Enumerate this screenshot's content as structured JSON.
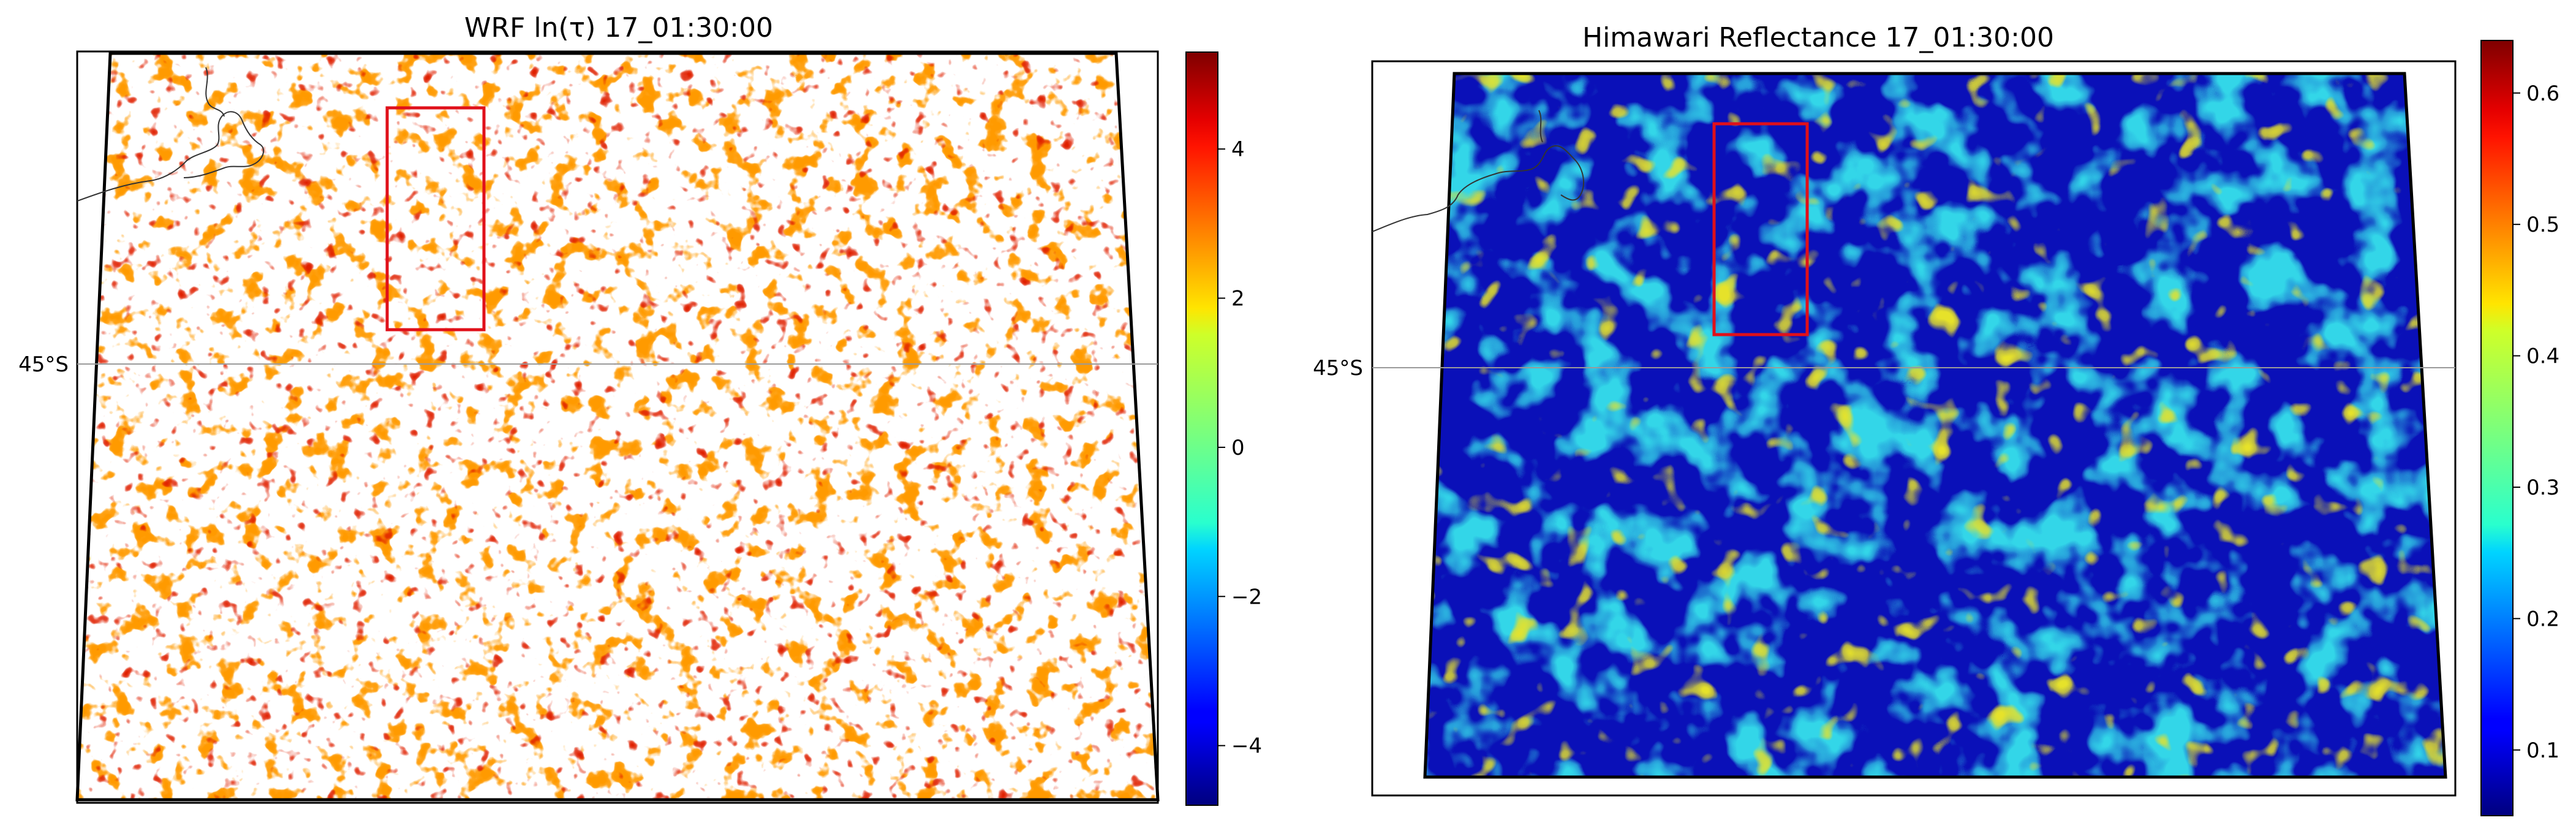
{
  "chart_data": [
    {
      "type": "heatmap",
      "title": "WRF ln(τ) 17_01:30:00",
      "field": "ln(τ)",
      "time": "17_01:30:00",
      "colormap": "jet",
      "vmin": -4.8,
      "vmax": 5.3,
      "colorbar_ticks": [
        {
          "value": 4,
          "label": "4"
        },
        {
          "value": 2,
          "label": "2"
        },
        {
          "value": 0,
          "label": "0"
        },
        {
          "value": -2,
          "label": "−2"
        },
        {
          "value": -4,
          "label": "−4"
        }
      ],
      "latitude_gridline": "45°S",
      "highlight_box_color": "#e0101a",
      "masked_color": "#ffffff",
      "coastline": true
    },
    {
      "type": "heatmap",
      "title": "Himawari Reflectance 17_01:30:00",
      "field": "Reflectance",
      "time": "17_01:30:00",
      "colormap": "jet",
      "vmin": 0.05,
      "vmax": 0.64,
      "colorbar_ticks": [
        {
          "value": 0.6,
          "label": "0.6"
        },
        {
          "value": 0.5,
          "label": "0.5"
        },
        {
          "value": 0.4,
          "label": "0.4"
        },
        {
          "value": 0.3,
          "label": "0.3"
        },
        {
          "value": 0.2,
          "label": "0.2"
        },
        {
          "value": 0.1,
          "label": "0.1"
        }
      ],
      "latitude_gridline": "45°S",
      "highlight_box_color": "#e0101a",
      "coastline": true
    }
  ]
}
